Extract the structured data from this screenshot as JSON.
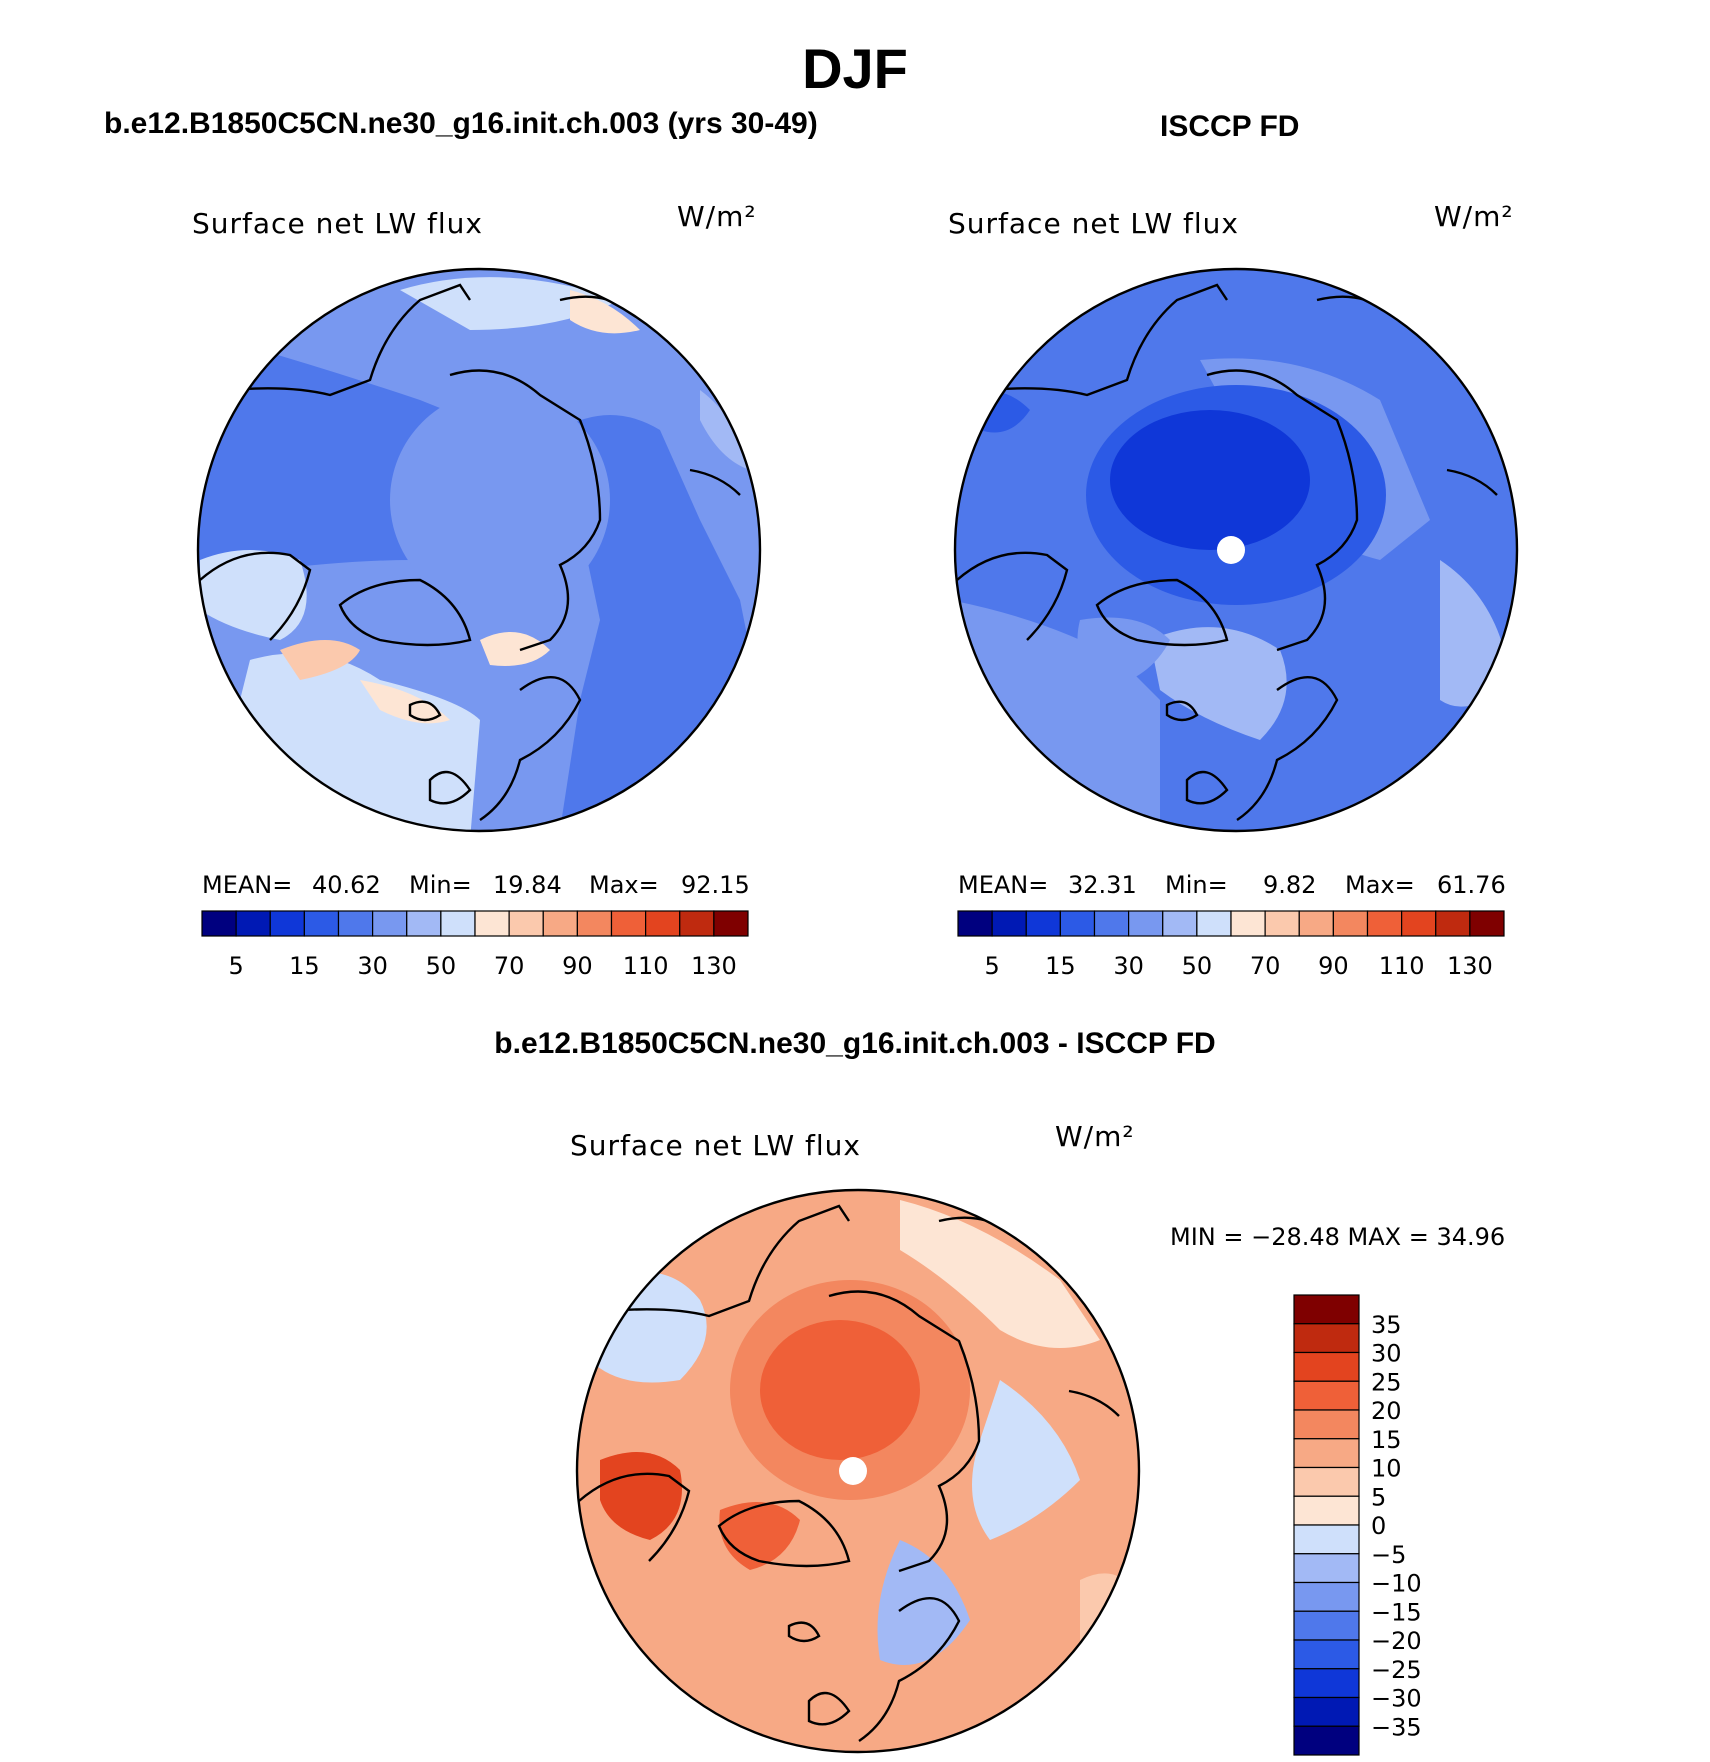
{
  "figure": {
    "title": "DJF",
    "colors": {
      "blue_scale": [
        "#00007f",
        "#0019b4",
        "#0f37d8",
        "#2c5ae6",
        "#4f78eb",
        "#7898f0",
        "#a2b9f5",
        "#cfe0fb"
      ],
      "red_scale": [
        "#fde5d4",
        "#fbc9ad",
        "#f7a985",
        "#f3875f",
        "#ef6038",
        "#e3441f",
        "#bf2a0f",
        "#7f0000"
      ],
      "missing": "#ffffff",
      "coastline": "#000000"
    }
  },
  "panels": [
    {
      "id": "model",
      "subtitle": "b.e12.B1850C5CN.ne30_g16.init.ch.003 (yrs 30-49)",
      "variable": "Surface net LW flux",
      "units": "W/m²",
      "stats": {
        "mean_label": "MEAN=",
        "mean": "40.62",
        "min_label": "Min=",
        "min": "19.84",
        "max_label": "Max=",
        "max": "92.15"
      },
      "colorbar_ticks": [
        "5",
        "15",
        "30",
        "50",
        "70",
        "90",
        "110",
        "130"
      ]
    },
    {
      "id": "obs",
      "subtitle": "ISCCP FD",
      "variable": "Surface net LW flux",
      "units": "W/m²",
      "stats": {
        "mean_label": "MEAN=",
        "mean": "32.31",
        "min_label": "Min=",
        "min": "9.82",
        "max_label": "Max=",
        "max": "61.76"
      },
      "colorbar_ticks": [
        "5",
        "15",
        "30",
        "50",
        "70",
        "90",
        "110",
        "130"
      ]
    },
    {
      "id": "diff",
      "subtitle": "b.e12.B1850C5CN.ne30_g16.init.ch.003 - ISCCP FD",
      "variable": "Surface net LW flux",
      "units": "W/m²",
      "stats_text": "MIN = −28.48 MAX =   34.96",
      "colorbar_ticks": [
        "35",
        "30",
        "25",
        "20",
        "15",
        "10",
        "5",
        "0",
        "−5",
        "−10",
        "−15",
        "−20",
        "−25",
        "−30",
        "−35"
      ]
    }
  ]
}
